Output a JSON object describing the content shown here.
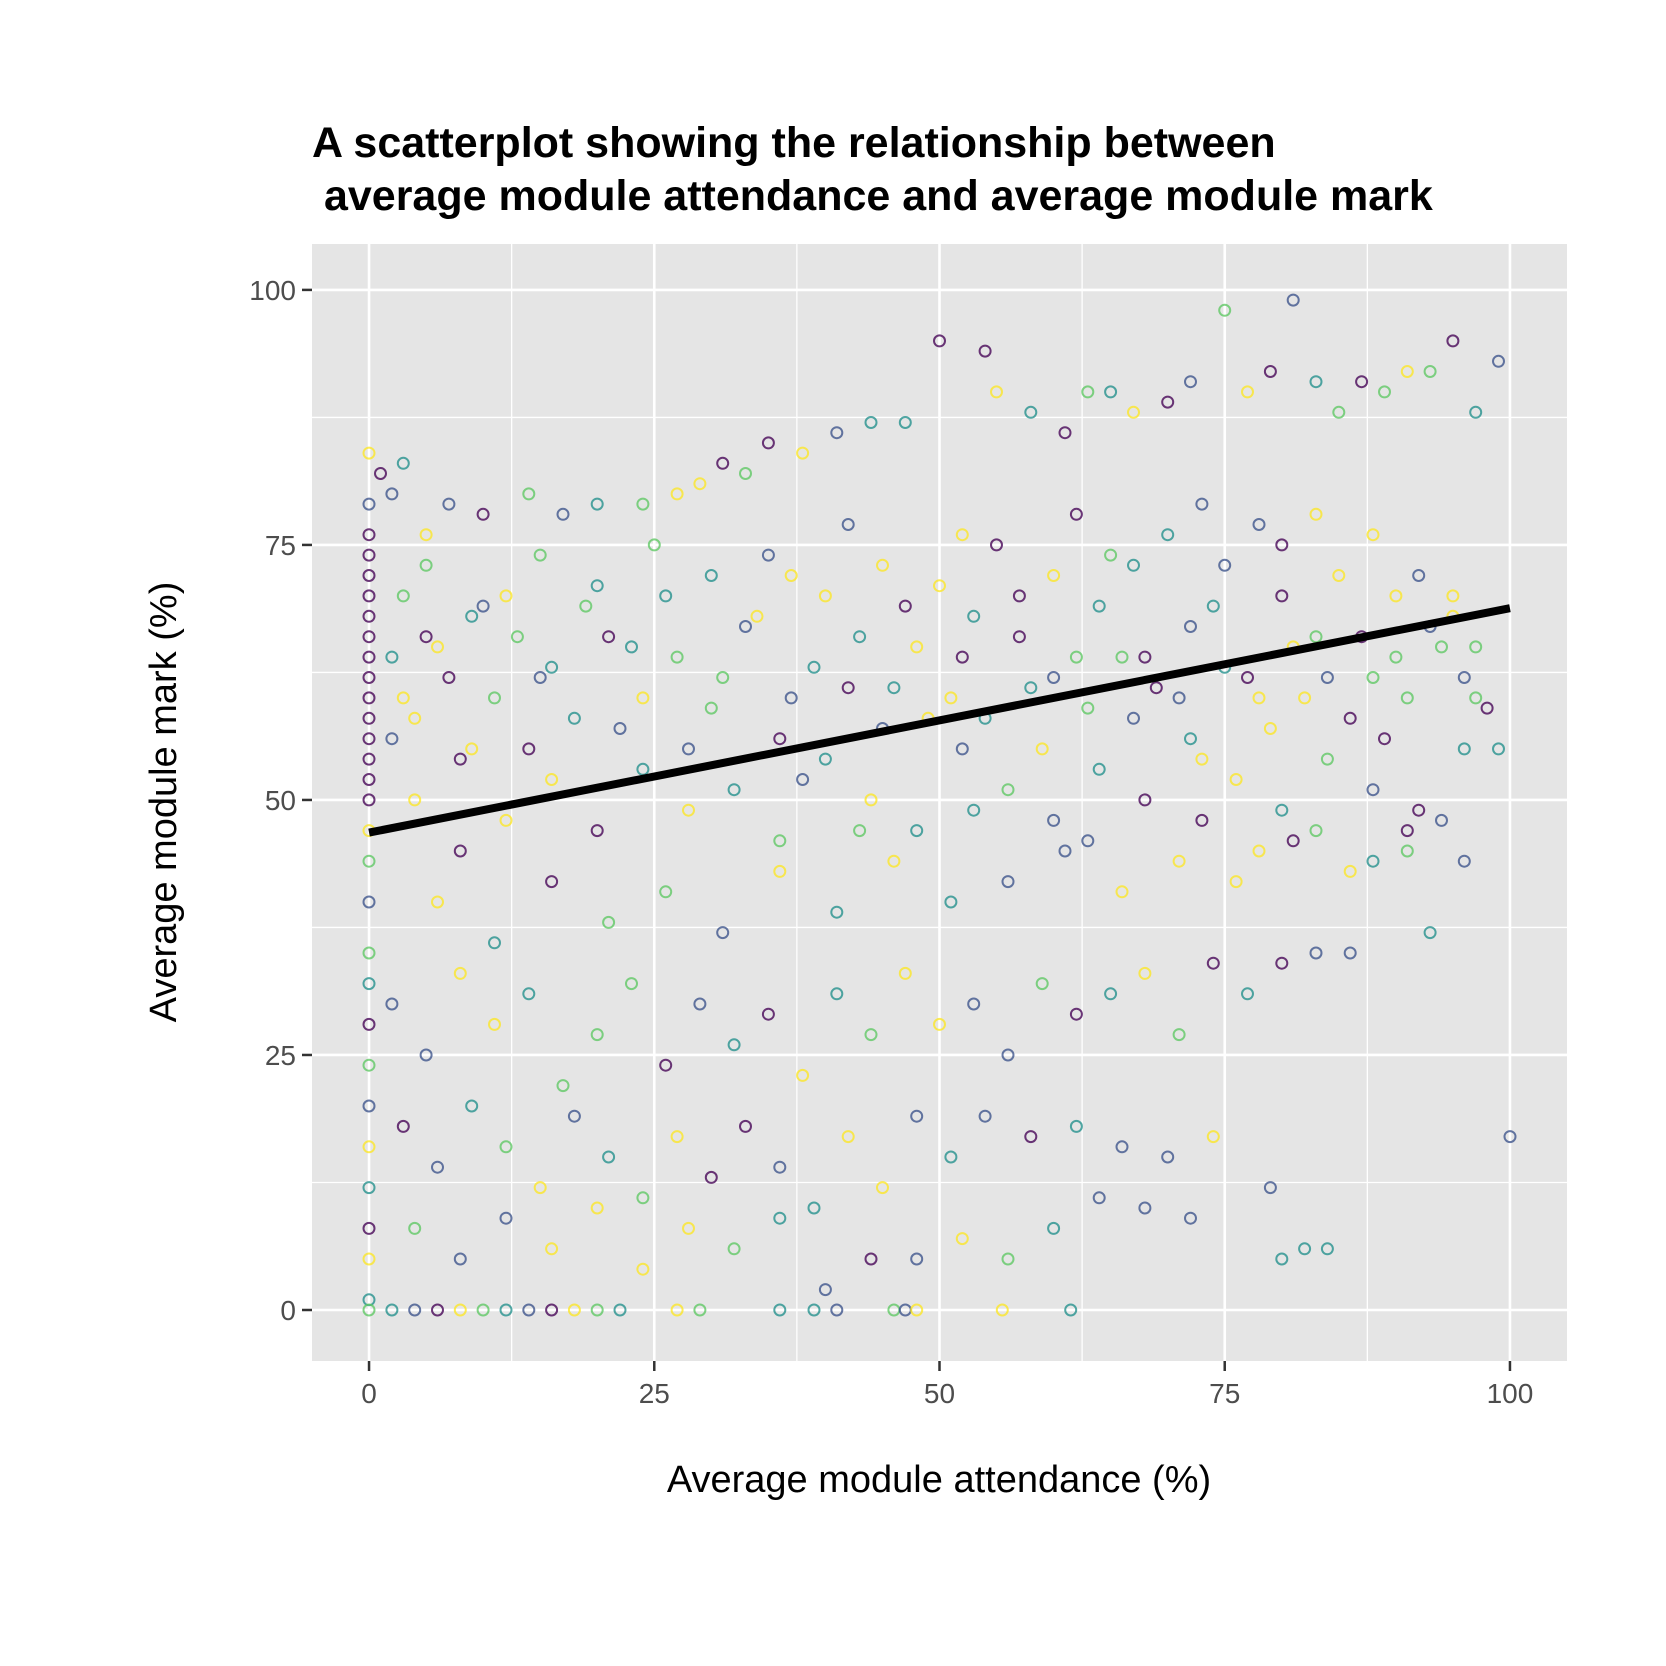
{
  "chart_data": {
    "type": "scatter",
    "title_lines": [
      "A scatterplot showing the relationship between",
      " average module attendance and average module mark"
    ],
    "xlabel": "Average module attendance (%)",
    "ylabel": "Average module mark (%)",
    "xlim": [
      -5,
      105
    ],
    "ylim": [
      -5,
      104.5
    ],
    "x_ticks": [
      0,
      25,
      50,
      75,
      100
    ],
    "y_ticks": [
      0,
      25,
      50,
      75,
      100
    ],
    "x_tick_labels": [
      "0",
      "25",
      "50",
      "75",
      "100"
    ],
    "y_tick_labels": [
      "0",
      "25",
      "50",
      "75",
      "100"
    ],
    "grid": true,
    "panel_background": "#e5e5e5",
    "grid_color": "#ffffff",
    "point_shape": "open-circle",
    "point_colormap": [
      "#440154",
      "#3b528b",
      "#21908c",
      "#5dc863",
      "#fde725"
    ],
    "trend_line": {
      "x": [
        0,
        100
      ],
      "y": [
        46.8,
        68.8
      ],
      "color": "#000000"
    },
    "points": [
      [
        0,
        84
      ],
      [
        0,
        79
      ],
      [
        0,
        76
      ],
      [
        0,
        74
      ],
      [
        0,
        72
      ],
      [
        0,
        70
      ],
      [
        0,
        68
      ],
      [
        0,
        66
      ],
      [
        0,
        64
      ],
      [
        0,
        62
      ],
      [
        0,
        60
      ],
      [
        0,
        58
      ],
      [
        0,
        56
      ],
      [
        0,
        54
      ],
      [
        0,
        52
      ],
      [
        0,
        50
      ],
      [
        0,
        47
      ],
      [
        0,
        44
      ],
      [
        0,
        40
      ],
      [
        0,
        35
      ],
      [
        0,
        32
      ],
      [
        0,
        28
      ],
      [
        0,
        24
      ],
      [
        0,
        20
      ],
      [
        0,
        16
      ],
      [
        0,
        12
      ],
      [
        0,
        8
      ],
      [
        0,
        5
      ],
      [
        0,
        1
      ],
      [
        0,
        0
      ],
      [
        2,
        0
      ],
      [
        4,
        0
      ],
      [
        6,
        0
      ],
      [
        8,
        0
      ],
      [
        10,
        0
      ],
      [
        12,
        0
      ],
      [
        14,
        0
      ],
      [
        16,
        0
      ],
      [
        18,
        0
      ],
      [
        20,
        0
      ],
      [
        22,
        0
      ],
      [
        27,
        0
      ],
      [
        29,
        0
      ],
      [
        36,
        0
      ],
      [
        39,
        0
      ],
      [
        41,
        0
      ],
      [
        46,
        0
      ],
      [
        47,
        0
      ],
      [
        48,
        0
      ],
      [
        55.5,
        0
      ],
      [
        61.5,
        0
      ],
      [
        1,
        82
      ],
      [
        2,
        80
      ],
      [
        3,
        83
      ],
      [
        5,
        76
      ],
      [
        7,
        79
      ],
      [
        10,
        78
      ],
      [
        14,
        80
      ],
      [
        17,
        78
      ],
      [
        20,
        79
      ],
      [
        24,
        79
      ],
      [
        27,
        80
      ],
      [
        29,
        81
      ],
      [
        31,
        83
      ],
      [
        33,
        82
      ],
      [
        35,
        85
      ],
      [
        38,
        84
      ],
      [
        41,
        86
      ],
      [
        44,
        87
      ],
      [
        47,
        87
      ],
      [
        50,
        95
      ],
      [
        54,
        94
      ],
      [
        55,
        90
      ],
      [
        58,
        88
      ],
      [
        61,
        86
      ],
      [
        63,
        90
      ],
      [
        65,
        90
      ],
      [
        67,
        88
      ],
      [
        70,
        89
      ],
      [
        72,
        91
      ],
      [
        75,
        98
      ],
      [
        77,
        90
      ],
      [
        79,
        92
      ],
      [
        81,
        99
      ],
      [
        83,
        91
      ],
      [
        85,
        88
      ],
      [
        87,
        91
      ],
      [
        89,
        90
      ],
      [
        91,
        92
      ],
      [
        93,
        92
      ],
      [
        95,
        95
      ],
      [
        97,
        88
      ],
      [
        99,
        93
      ],
      [
        3,
        60
      ],
      [
        6,
        65
      ],
      [
        9,
        55
      ],
      [
        12,
        70
      ],
      [
        15,
        62
      ],
      [
        18,
        58
      ],
      [
        21,
        66
      ],
      [
        24,
        60
      ],
      [
        27,
        64
      ],
      [
        30,
        59
      ],
      [
        33,
        67
      ],
      [
        36,
        56
      ],
      [
        39,
        63
      ],
      [
        42,
        61
      ],
      [
        45,
        57
      ],
      [
        48,
        65
      ],
      [
        51,
        60
      ],
      [
        54,
        58
      ],
      [
        57,
        66
      ],
      [
        60,
        62
      ],
      [
        63,
        59
      ],
      [
        66,
        64
      ],
      [
        69,
        61
      ],
      [
        72,
        67
      ],
      [
        75,
        63
      ],
      [
        78,
        60
      ],
      [
        81,
        65
      ],
      [
        84,
        62
      ],
      [
        87,
        66
      ],
      [
        90,
        64
      ],
      [
        93,
        67
      ],
      [
        96,
        62
      ],
      [
        4,
        50
      ],
      [
        8,
        45
      ],
      [
        12,
        48
      ],
      [
        16,
        52
      ],
      [
        20,
        47
      ],
      [
        24,
        53
      ],
      [
        28,
        49
      ],
      [
        32,
        51
      ],
      [
        36,
        46
      ],
      [
        40,
        54
      ],
      [
        44,
        50
      ],
      [
        48,
        47
      ],
      [
        52,
        55
      ],
      [
        56,
        51
      ],
      [
        60,
        48
      ],
      [
        64,
        53
      ],
      [
        68,
        50
      ],
      [
        72,
        56
      ],
      [
        76,
        52
      ],
      [
        80,
        49
      ],
      [
        84,
        54
      ],
      [
        88,
        51
      ],
      [
        92,
        49
      ],
      [
        96,
        55
      ],
      [
        99,
        55
      ],
      [
        5,
        73
      ],
      [
        10,
        69
      ],
      [
        15,
        74
      ],
      [
        20,
        71
      ],
      [
        25,
        75
      ],
      [
        30,
        72
      ],
      [
        35,
        74
      ],
      [
        40,
        70
      ],
      [
        45,
        73
      ],
      [
        50,
        71
      ],
      [
        55,
        75
      ],
      [
        60,
        72
      ],
      [
        65,
        74
      ],
      [
        70,
        76
      ],
      [
        75,
        73
      ],
      [
        80,
        75
      ],
      [
        85,
        72
      ],
      [
        90,
        70
      ],
      [
        95,
        68
      ],
      [
        6,
        40
      ],
      [
        11,
        36
      ],
      [
        16,
        42
      ],
      [
        21,
        38
      ],
      [
        26,
        41
      ],
      [
        31,
        37
      ],
      [
        36,
        43
      ],
      [
        41,
        39
      ],
      [
        46,
        44
      ],
      [
        51,
        40
      ],
      [
        56,
        42
      ],
      [
        61,
        45
      ],
      [
        66,
        41
      ],
      [
        71,
        44
      ],
      [
        76,
        42
      ],
      [
        81,
        46
      ],
      [
        86,
        43
      ],
      [
        91,
        45
      ],
      [
        2,
        30
      ],
      [
        5,
        25
      ],
      [
        8,
        33
      ],
      [
        11,
        28
      ],
      [
        14,
        31
      ],
      [
        17,
        22
      ],
      [
        20,
        27
      ],
      [
        23,
        32
      ],
      [
        26,
        24
      ],
      [
        29,
        30
      ],
      [
        32,
        26
      ],
      [
        35,
        29
      ],
      [
        38,
        23
      ],
      [
        41,
        31
      ],
      [
        44,
        27
      ],
      [
        47,
        33
      ],
      [
        50,
        28
      ],
      [
        53,
        30
      ],
      [
        56,
        25
      ],
      [
        59,
        32
      ],
      [
        62,
        29
      ],
      [
        65,
        31
      ],
      [
        68,
        33
      ],
      [
        71,
        27
      ],
      [
        74,
        34
      ],
      [
        77,
        31
      ],
      [
        80,
        34
      ],
      [
        83,
        35
      ],
      [
        86,
        35
      ],
      [
        93,
        37
      ],
      [
        3,
        18
      ],
      [
        6,
        14
      ],
      [
        9,
        20
      ],
      [
        12,
        16
      ],
      [
        15,
        12
      ],
      [
        18,
        19
      ],
      [
        21,
        15
      ],
      [
        24,
        11
      ],
      [
        27,
        17
      ],
      [
        30,
        13
      ],
      [
        33,
        18
      ],
      [
        36,
        14
      ],
      [
        39,
        10
      ],
      [
        42,
        17
      ],
      [
        45,
        12
      ],
      [
        48,
        19
      ],
      [
        51,
        15
      ],
      [
        54,
        19
      ],
      [
        58,
        17
      ],
      [
        62,
        18
      ],
      [
        66,
        16
      ],
      [
        70,
        15
      ],
      [
        74,
        17
      ],
      [
        79,
        12
      ],
      [
        84,
        6
      ],
      [
        100,
        17
      ],
      [
        4,
        8
      ],
      [
        8,
        5
      ],
      [
        12,
        9
      ],
      [
        16,
        6
      ],
      [
        20,
        10
      ],
      [
        24,
        4
      ],
      [
        28,
        8
      ],
      [
        32,
        6
      ],
      [
        36,
        9
      ],
      [
        40,
        2
      ],
      [
        44,
        5
      ],
      [
        48,
        5
      ],
      [
        52,
        7
      ],
      [
        56,
        5
      ],
      [
        60,
        8
      ],
      [
        64,
        11
      ],
      [
        68,
        10
      ],
      [
        72,
        9
      ],
      [
        80,
        5
      ],
      [
        82,
        6
      ],
      [
        2,
        64
      ],
      [
        2,
        56
      ],
      [
        3,
        70
      ],
      [
        4,
        58
      ],
      [
        5,
        66
      ],
      [
        7,
        62
      ],
      [
        8,
        54
      ],
      [
        9,
        68
      ],
      [
        11,
        60
      ],
      [
        13,
        66
      ],
      [
        14,
        55
      ],
      [
        16,
        63
      ],
      [
        19,
        69
      ],
      [
        22,
        57
      ],
      [
        23,
        65
      ],
      [
        26,
        70
      ],
      [
        28,
        55
      ],
      [
        31,
        62
      ],
      [
        34,
        68
      ],
      [
        37,
        60
      ],
      [
        38,
        52
      ],
      [
        43,
        66
      ],
      [
        46,
        61
      ],
      [
        49,
        58
      ],
      [
        52,
        64
      ],
      [
        53,
        68
      ],
      [
        58,
        61
      ],
      [
        59,
        55
      ],
      [
        62,
        64
      ],
      [
        64,
        69
      ],
      [
        67,
        58
      ],
      [
        68,
        64
      ],
      [
        71,
        60
      ],
      [
        73,
        54
      ],
      [
        74,
        69
      ],
      [
        77,
        62
      ],
      [
        79,
        57
      ],
      [
        80,
        70
      ],
      [
        82,
        60
      ],
      [
        83,
        66
      ],
      [
        86,
        58
      ],
      [
        88,
        62
      ],
      [
        89,
        56
      ],
      [
        91,
        60
      ],
      [
        94,
        65
      ],
      [
        97,
        60
      ],
      [
        98,
        59
      ],
      [
        37,
        72
      ],
      [
        42,
        77
      ],
      [
        47,
        69
      ],
      [
        52,
        76
      ],
      [
        57,
        70
      ],
      [
        62,
        78
      ],
      [
        67,
        73
      ],
      [
        73,
        79
      ],
      [
        78,
        77
      ],
      [
        83,
        78
      ],
      [
        88,
        76
      ],
      [
        92,
        72
      ],
      [
        95,
        70
      ],
      [
        97,
        65
      ],
      [
        43,
        47
      ],
      [
        53,
        49
      ],
      [
        63,
        46
      ],
      [
        73,
        48
      ],
      [
        78,
        45
      ],
      [
        83,
        47
      ],
      [
        88,
        44
      ],
      [
        91,
        47
      ],
      [
        94,
        48
      ],
      [
        96,
        44
      ]
    ]
  }
}
